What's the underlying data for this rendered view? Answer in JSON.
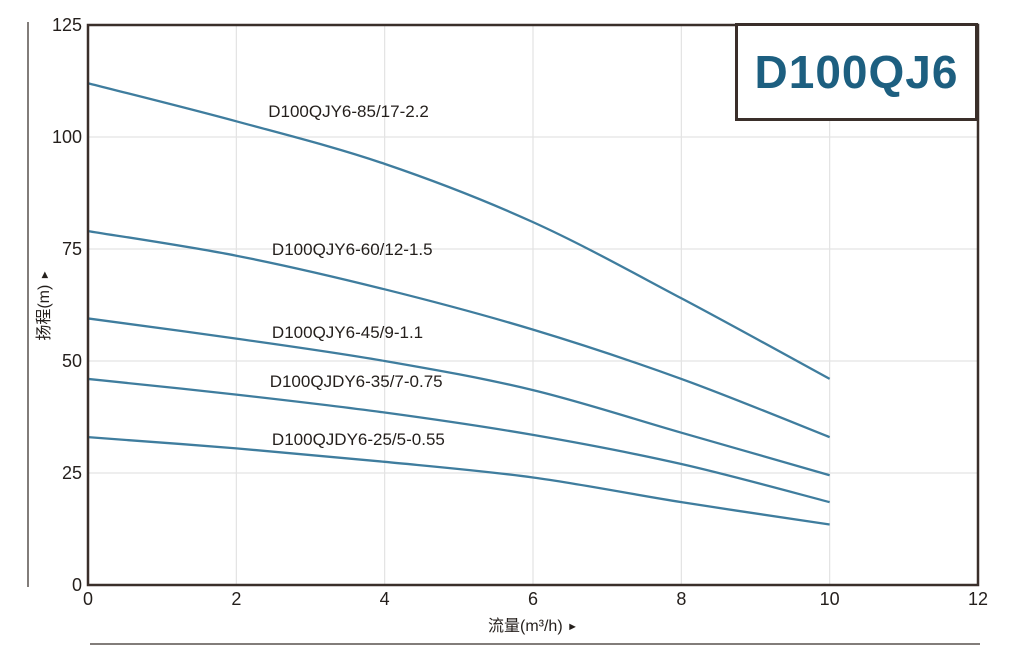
{
  "title_box": {
    "label": "D100QJ6",
    "text_color": "#1d5f80"
  },
  "icons": {
    "axis_arrow_right": "►",
    "axis_arrow_up": "►"
  },
  "colors": {
    "curve": "#3f7d9e",
    "frame": "#3a2f2a",
    "grid": "#e3e3e3",
    "text": "#241f1c",
    "title_text": "#1d5f80",
    "decorative_line": "#827d7a",
    "background": "#ffffff"
  },
  "chart_data": {
    "type": "line",
    "title": "D100QJ6",
    "xlabel": "流量(m³/h)",
    "ylabel": "扬程(m)",
    "xlim": [
      0,
      12
    ],
    "ylim": [
      0,
      125
    ],
    "x_ticks": [
      0,
      2,
      4,
      6,
      8,
      10,
      12
    ],
    "y_ticks": [
      0,
      25,
      50,
      75,
      100,
      125
    ],
    "grid": true,
    "legend_position": "inline-labels",
    "x": [
      0,
      2,
      4,
      6,
      8,
      10
    ],
    "series": [
      {
        "name": "D100QJY6-85/17-2.2",
        "values": [
          112,
          103.5,
          94,
          81,
          64,
          46
        ],
        "label_at": {
          "x": 2.43,
          "y": 105.6
        }
      },
      {
        "name": "D100QJY6-60/12-1.5",
        "values": [
          79,
          73.5,
          66,
          57,
          46,
          33
        ],
        "label_at": {
          "x": 2.48,
          "y": 74.8
        }
      },
      {
        "name": "D100QJY6-45/9-1.1",
        "values": [
          59.5,
          55,
          50,
          43.5,
          34,
          24.5
        ],
        "label_at": {
          "x": 2.48,
          "y": 56.3
        }
      },
      {
        "name": "D100QJDY6-35/7-0.75",
        "values": [
          46,
          42.5,
          38.5,
          33.5,
          27,
          18.5
        ],
        "label_at": {
          "x": 2.45,
          "y": 45.3
        }
      },
      {
        "name": "D100QJDY6-25/5-0.55",
        "values": [
          33,
          30.5,
          27.5,
          24,
          18.5,
          13.5
        ],
        "label_at": {
          "x": 2.48,
          "y": 32.4
        }
      }
    ]
  }
}
